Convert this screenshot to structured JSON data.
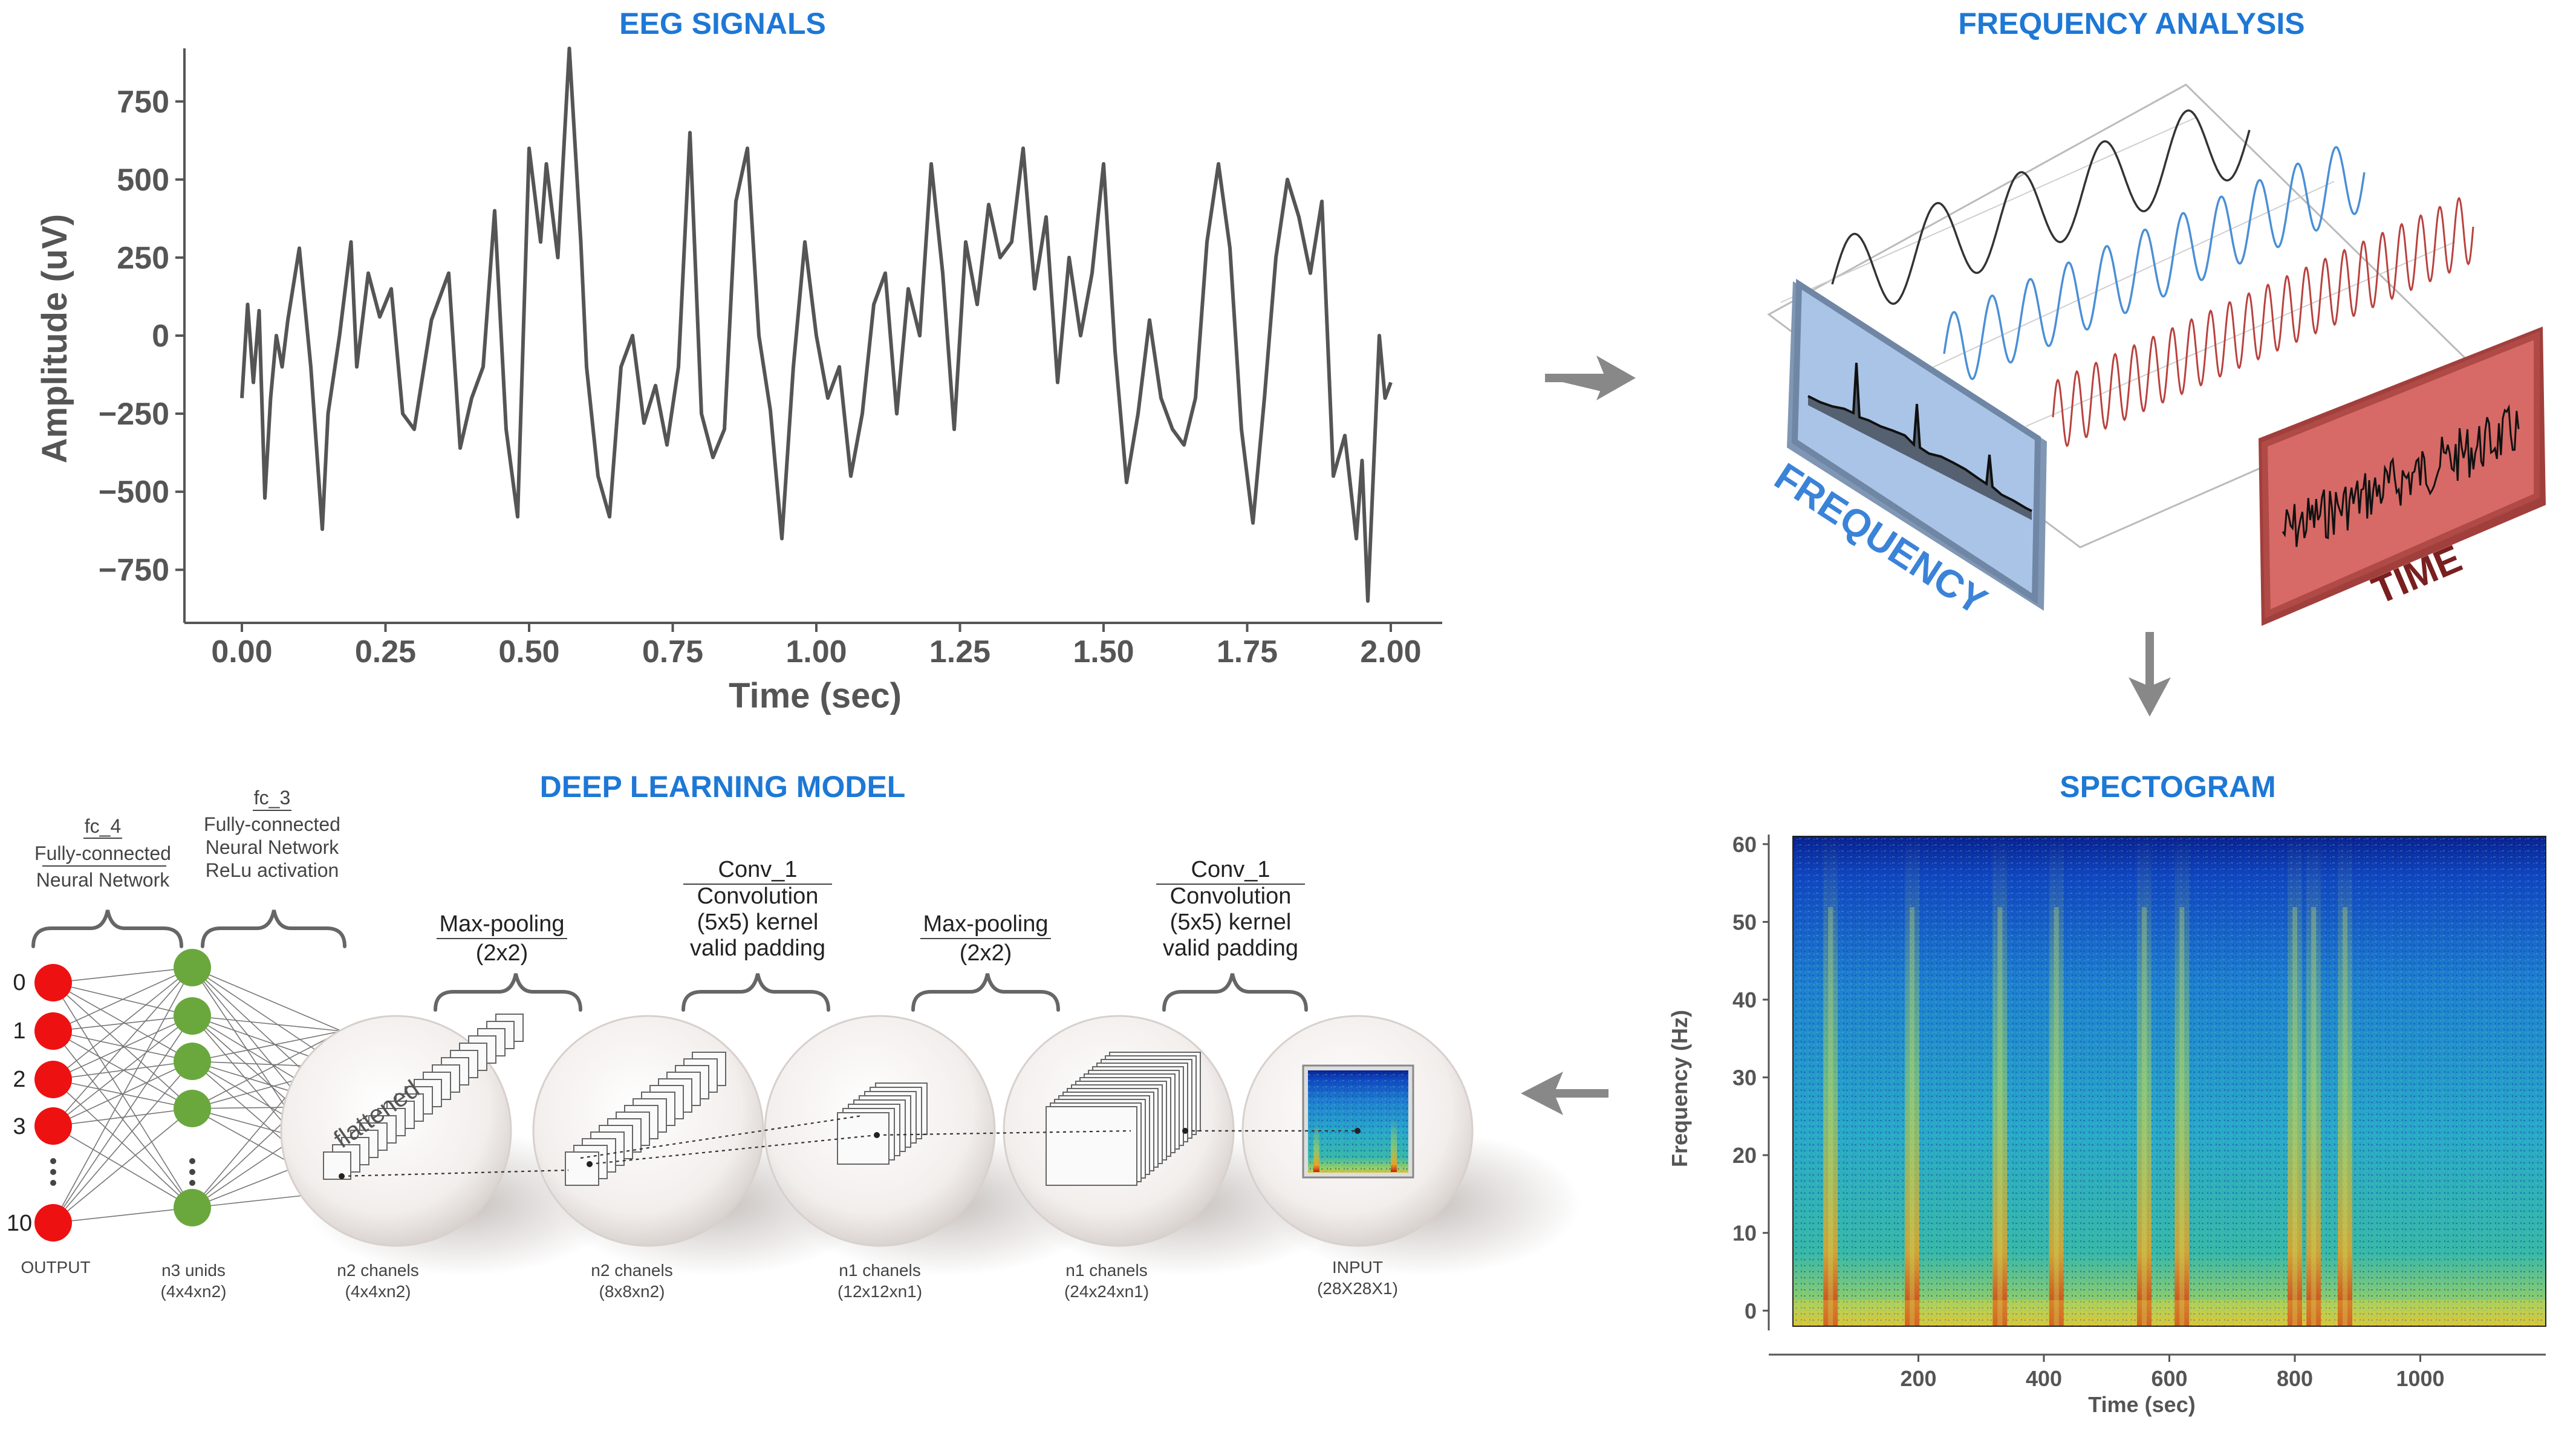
{
  "titles": {
    "eeg": "EEG SIGNALS",
    "freq": "FREQUENCY ANALYSIS",
    "dl": "DEEP LEARNING MODEL",
    "spec": "SPECTOGRAM"
  },
  "chart_data": [
    {
      "type": "line",
      "title": "EEG SIGNALS",
      "xlabel": "Time (sec)",
      "ylabel": "Amplitude (uV)",
      "xlim": [
        0,
        2
      ],
      "ylim": [
        -920,
        920
      ],
      "x_ticks": [
        "0.00",
        "0.25",
        "0.50",
        "0.75",
        "1.00",
        "1.25",
        "1.50",
        "1.75",
        "2.00"
      ],
      "y_ticks": [
        "750",
        "500",
        "250",
        "0",
        "−250",
        "−500",
        "−750"
      ],
      "y_tick_values": [
        750,
        500,
        250,
        0,
        -250,
        -500,
        -750
      ],
      "series": [
        {
          "name": "EEG",
          "x": [
            0.0,
            0.01,
            0.02,
            0.03,
            0.04,
            0.05,
            0.06,
            0.07,
            0.08,
            0.1,
            0.12,
            0.14,
            0.15,
            0.17,
            0.19,
            0.2,
            0.22,
            0.24,
            0.26,
            0.28,
            0.3,
            0.33,
            0.36,
            0.38,
            0.4,
            0.42,
            0.44,
            0.46,
            0.48,
            0.5,
            0.52,
            0.53,
            0.55,
            0.57,
            0.59,
            0.6,
            0.62,
            0.64,
            0.66,
            0.68,
            0.7,
            0.72,
            0.74,
            0.76,
            0.78,
            0.8,
            0.82,
            0.84,
            0.86,
            0.88,
            0.9,
            0.92,
            0.94,
            0.96,
            0.98,
            1.0,
            1.02,
            1.04,
            1.06,
            1.08,
            1.1,
            1.12,
            1.14,
            1.16,
            1.18,
            1.2,
            1.22,
            1.24,
            1.26,
            1.28,
            1.3,
            1.32,
            1.34,
            1.36,
            1.38,
            1.4,
            1.42,
            1.44,
            1.46,
            1.48,
            1.5,
            1.52,
            1.54,
            1.56,
            1.58,
            1.6,
            1.62,
            1.64,
            1.66,
            1.68,
            1.7,
            1.72,
            1.74,
            1.76,
            1.78,
            1.8,
            1.82,
            1.84,
            1.86,
            1.88,
            1.9,
            1.92,
            1.94,
            1.95,
            1.96,
            1.98,
            1.99,
            2.0
          ],
          "y": [
            -200,
            100,
            -150,
            80,
            -520,
            -200,
            0,
            -100,
            50,
            280,
            -100,
            -620,
            -250,
            0,
            300,
            -100,
            200,
            60,
            150,
            -250,
            -300,
            50,
            200,
            -360,
            -200,
            -100,
            400,
            -300,
            -580,
            600,
            300,
            550,
            250,
            920,
            300,
            -100,
            -450,
            -580,
            -100,
            0,
            -280,
            -160,
            -350,
            -100,
            650,
            -250,
            -390,
            -300,
            430,
            600,
            0,
            -240,
            -650,
            -100,
            300,
            0,
            -200,
            -100,
            -450,
            -250,
            100,
            200,
            -250,
            150,
            0,
            550,
            200,
            -300,
            300,
            100,
            420,
            250,
            300,
            600,
            150,
            380,
            -150,
            250,
            0,
            200,
            550,
            -50,
            -470,
            -250,
            50,
            -200,
            -300,
            -350,
            -200,
            300,
            550,
            280,
            -300,
            -600,
            -200,
            250,
            500,
            380,
            200,
            430,
            -450,
            -320,
            -650,
            -400,
            -850,
            0,
            -200,
            -150
          ]
        }
      ]
    },
    {
      "type": "heatmap",
      "title": "SPECTOGRAM",
      "xlabel": "Time (sec)",
      "ylabel": "Frequency (Hz)",
      "xlim": [
        0,
        1200
      ],
      "ylim": [
        -2,
        61
      ],
      "x_ticks": [
        "200",
        "400",
        "600",
        "800",
        "1000"
      ],
      "x_tick_values": [
        200,
        400,
        600,
        800,
        1000
      ],
      "y_ticks": [
        "60",
        "50",
        "40",
        "30",
        "20",
        "10",
        "0"
      ],
      "y_tick_values": [
        60,
        50,
        40,
        30,
        20,
        10,
        0
      ],
      "high_energy_bursts_sec": [
        60,
        190,
        330,
        420,
        560,
        620,
        800,
        830,
        880
      ]
    }
  ],
  "freq_analysis": {
    "frequency_label": "FREQUENCY",
    "time_label": "TIME",
    "colors": {
      "wave1": "#333333",
      "wave2": "#4a8fd6",
      "wave3": "#b8423f",
      "freq_panel": "#9fbde3",
      "time_panel": "#c95a57"
    }
  },
  "dl_model": {
    "fc4": {
      "name": "fc_4",
      "line1": "Fully-connected",
      "line2": "Neural Network"
    },
    "fc3": {
      "name": "fc_3",
      "line1": "Fully-connected",
      "line2": "Neural Network",
      "line3": "ReLu activation"
    },
    "maxpool": {
      "line1": "Max-pooling",
      "line2": "(2x2)"
    },
    "conv": {
      "line1": "Conv_1",
      "line2": "Convolution",
      "line3": "(5x5) kernel",
      "line4": "valid padding"
    },
    "output_labels": [
      "0",
      "1",
      "2",
      "3",
      "10"
    ],
    "output_caption": "OUTPUT",
    "flattened": "flattened",
    "circle_captions": [
      {
        "l1": "n3 unids",
        "l2": "(4x4xn2)"
      },
      {
        "l1": "n2 chanels",
        "l2": "(4x4xn2)"
      },
      {
        "l1": "n2 chanels",
        "l2": "(8x8xn2)"
      },
      {
        "l1": "n1 chanels",
        "l2": "(12x12xn1)"
      },
      {
        "l1": "n1 chanels",
        "l2": "(24x24xn1)"
      },
      {
        "l1": "INPUT",
        "l2": "(28X28X1)"
      }
    ],
    "colors": {
      "output_node": "#ee1111",
      "hidden_node": "#6aa83e"
    }
  }
}
